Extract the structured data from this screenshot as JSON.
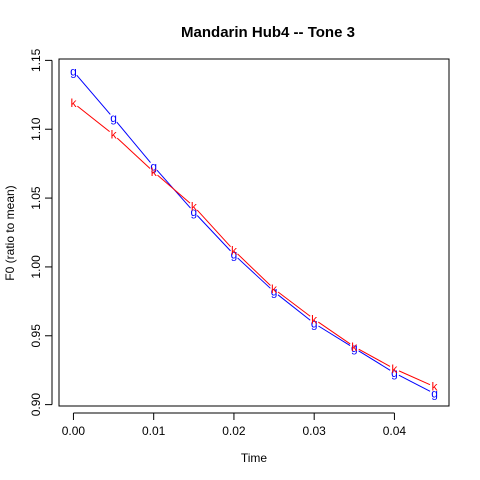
{
  "chart_data": {
    "type": "line",
    "title": "Mandarin Hub4 -- Tone 3",
    "xlabel": "Time",
    "ylabel": "F0 (ratio to mean)",
    "xlim": [
      -0.0018,
      0.0468
    ],
    "ylim": [
      0.899,
      1.151
    ],
    "xticks": [
      0.0,
      0.01,
      0.02,
      0.03,
      0.04
    ],
    "xtick_labels": [
      "0.00",
      "0.01",
      "0.02",
      "0.03",
      "0.04"
    ],
    "yticks": [
      0.9,
      0.95,
      1.0,
      1.05,
      1.1,
      1.15
    ],
    "ytick_labels": [
      "0.90",
      "0.95",
      "1.00",
      "1.05",
      "1.10",
      "1.15"
    ],
    "grid": false,
    "x": [
      0.0,
      0.005,
      0.01,
      0.015,
      0.02,
      0.025,
      0.03,
      0.035,
      0.04,
      0.045
    ],
    "series": [
      {
        "marker": "g",
        "color": "#0000ff",
        "values": [
          1.142,
          1.108,
          1.073,
          1.04,
          1.009,
          0.982,
          0.959,
          0.941,
          0.923,
          0.908
        ]
      },
      {
        "marker": "k",
        "color": "#ff0000",
        "values": [
          1.119,
          1.096,
          1.069,
          1.044,
          1.012,
          0.984,
          0.962,
          0.942,
          0.926,
          0.913
        ]
      }
    ]
  }
}
